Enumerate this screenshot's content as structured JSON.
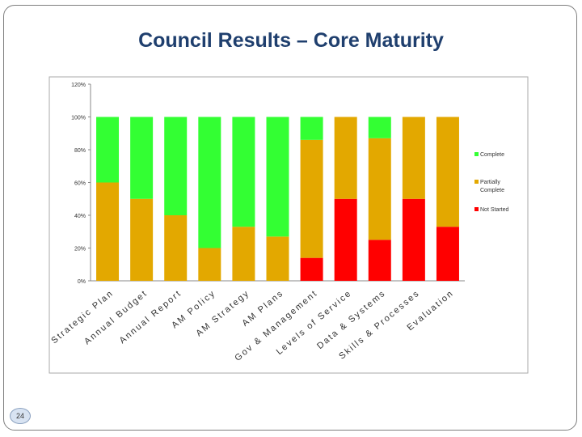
{
  "page": {
    "title": "Council Results – Core Maturity",
    "page_number": "24"
  },
  "colors": {
    "complete": "#33ff33",
    "partially_complete": "#e3a800",
    "not_started": "#ff0000"
  },
  "chart_data": {
    "type": "bar",
    "stacked": true,
    "title": "Council Results – Core Maturity",
    "xlabel": "",
    "ylabel": "",
    "ylim": [
      0,
      120
    ],
    "ytick_values": [
      0,
      20,
      40,
      60,
      80,
      100,
      120
    ],
    "ytick_labels": [
      "0%",
      "20%",
      "40%",
      "60%",
      "80%",
      "100%",
      "120%"
    ],
    "legend_position": "right",
    "grid": false,
    "categories": [
      "Strategic Plan",
      "Annual Budget",
      "Annual Report",
      "AM Policy",
      "AM Strategy",
      "AM Plans",
      "Gov & Management",
      "Levels of Service",
      "Data & Systems",
      "Skills & Processes",
      "Evaluation"
    ],
    "series": [
      {
        "name": "Not Started",
        "legend_label": [
          "Not Started"
        ],
        "color": "#ff0000",
        "values": [
          0,
          0,
          0,
          0,
          0,
          0,
          14,
          50,
          25,
          50,
          33
        ]
      },
      {
        "name": "Partially Complete",
        "legend_label": [
          "Partially",
          "Complete"
        ],
        "color": "#e3a800",
        "values": [
          60,
          50,
          40,
          20,
          33,
          27,
          72,
          50,
          62,
          50,
          67
        ]
      },
      {
        "name": "Complete",
        "legend_label": [
          "Complete"
        ],
        "color": "#33ff33",
        "values": [
          40,
          50,
          60,
          80,
          67,
          73,
          14,
          0,
          13,
          0,
          0
        ]
      }
    ]
  }
}
